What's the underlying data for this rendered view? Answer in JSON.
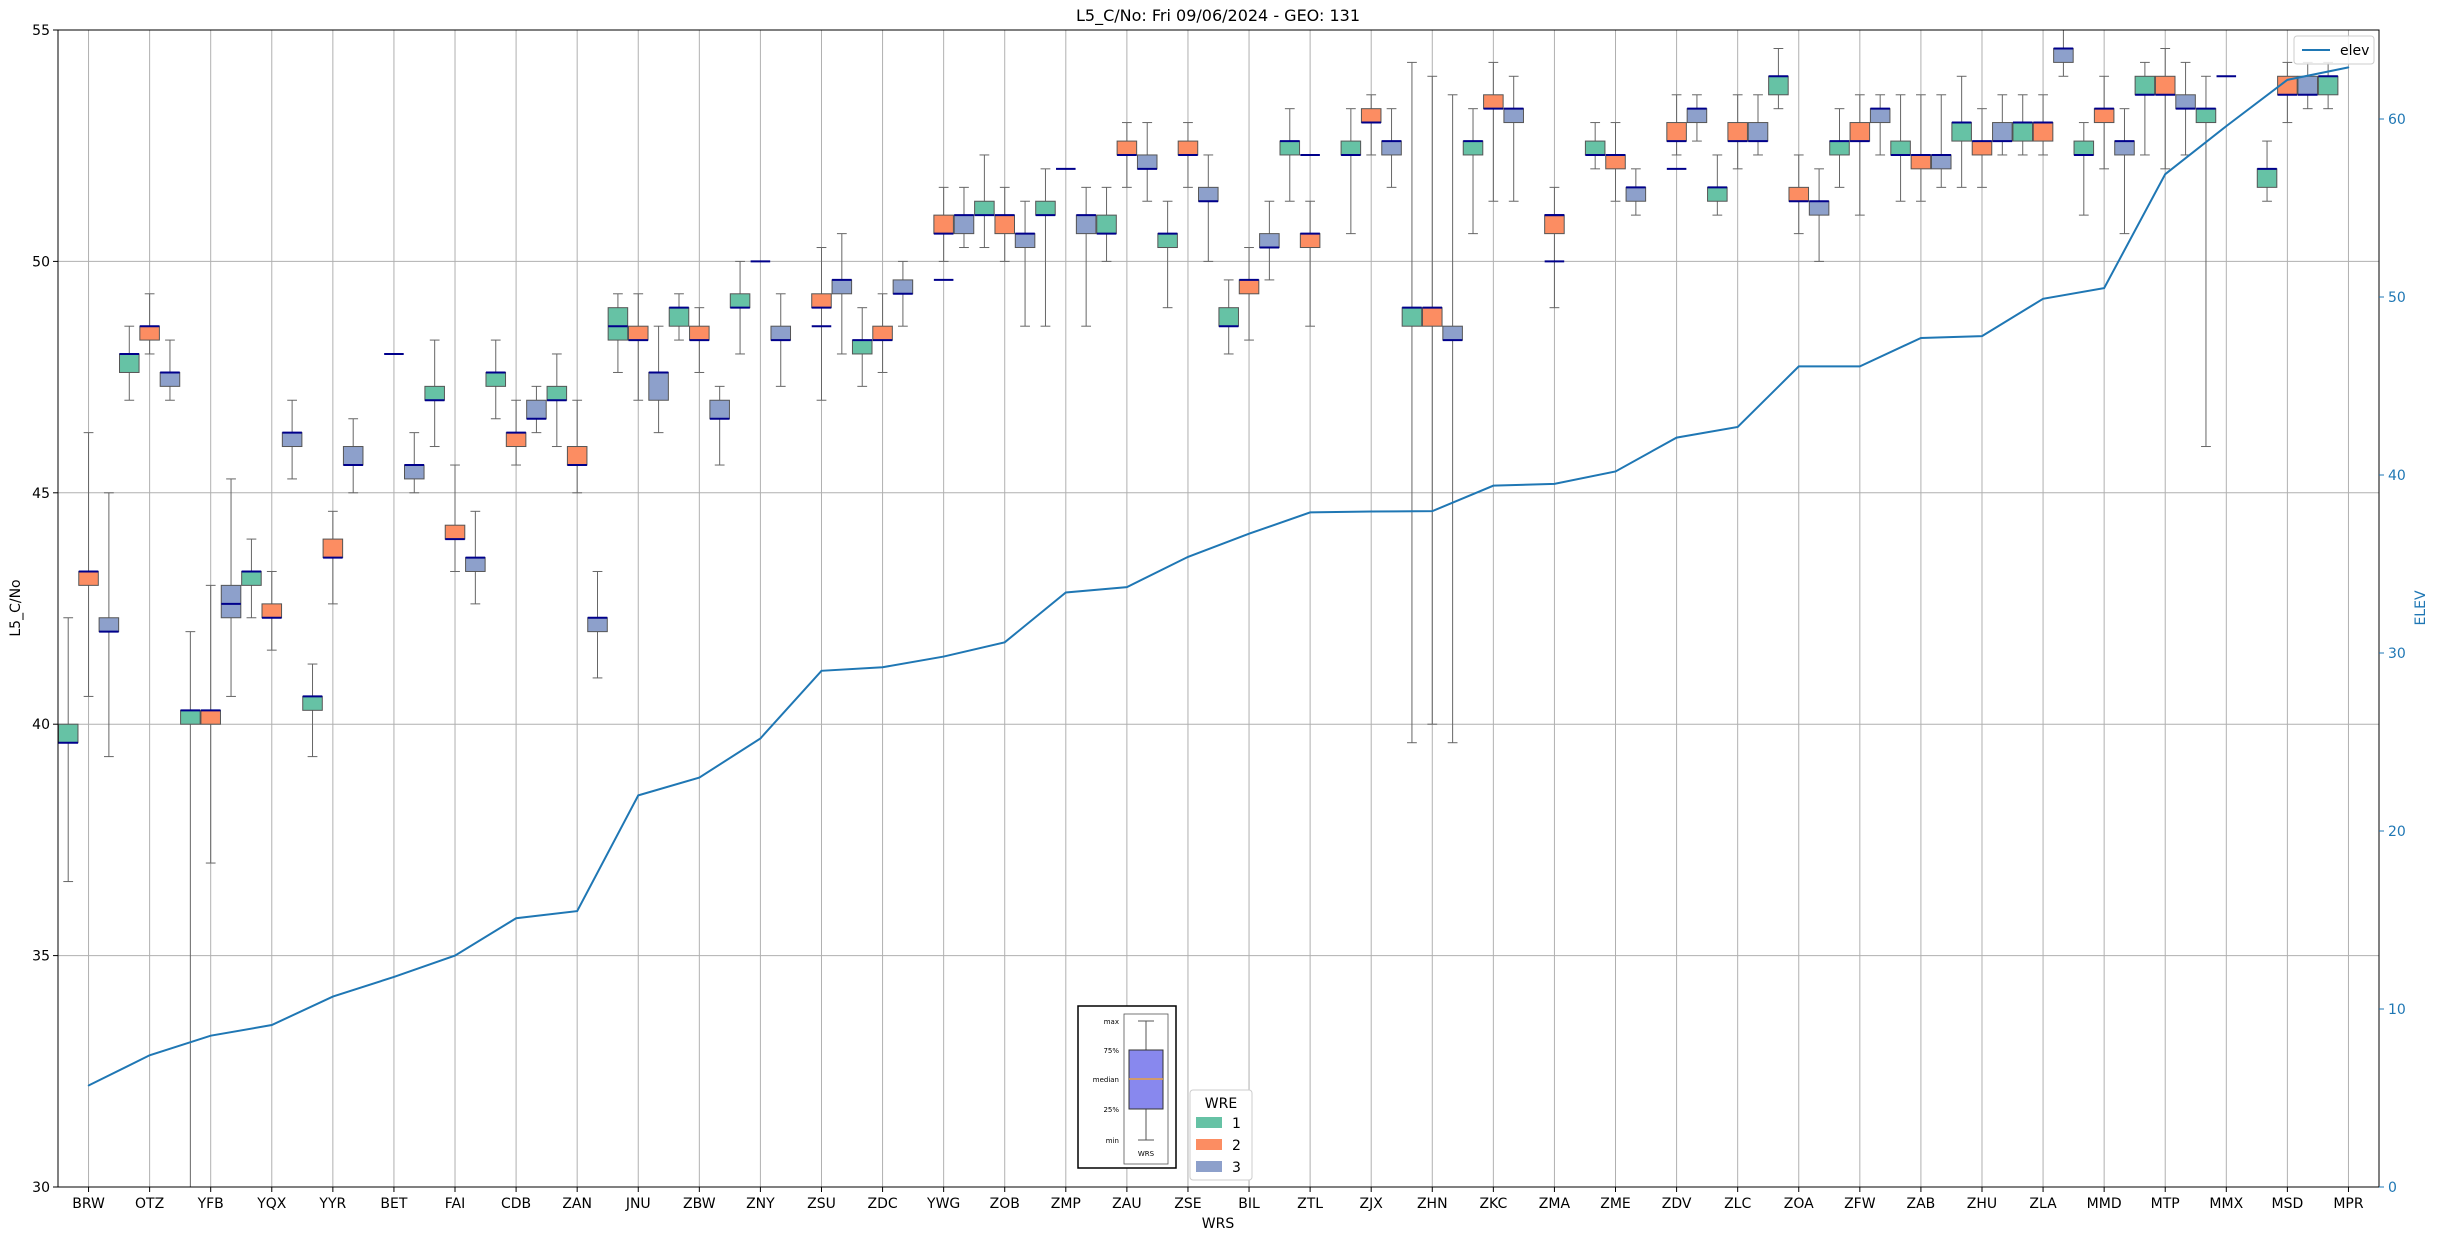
{
  "chart_data": {
    "type": "box",
    "title": "L5_C/No: Fri 09/06/2024 - GEO: 131",
    "xlabel": "WRS",
    "ylabel": "L5_C/No",
    "y2label": "ELEV",
    "ylim": [
      30,
      55
    ],
    "y2lim": [
      0,
      65
    ],
    "yticks": [
      30,
      35,
      40,
      45,
      50,
      55
    ],
    "y2ticks": [
      0,
      10,
      20,
      30,
      40,
      50,
      60
    ],
    "grid": true,
    "categories": [
      "BRW",
      "OTZ",
      "YFB",
      "YQX",
      "YYR",
      "BET",
      "FAI",
      "CDB",
      "ZAN",
      "JNU",
      "ZBW",
      "ZNY",
      "ZSU",
      "ZDC",
      "YWG",
      "ZOB",
      "ZMP",
      "ZAU",
      "ZSE",
      "BIL",
      "ZTL",
      "ZJX",
      "ZHN",
      "ZKC",
      "ZMA",
      "ZME",
      "ZDV",
      "ZLC",
      "ZOA",
      "ZFW",
      "ZAB",
      "ZHU",
      "ZLA",
      "MMD",
      "MTP",
      "MMX",
      "MSD",
      "MPR"
    ],
    "series": [
      {
        "name": "1",
        "color": "#66c2a5",
        "boxes": [
          {
            "cat": "BRW",
            "lo": 36.6,
            "q1": 39.6,
            "med": 39.6,
            "q3": 40.0,
            "hi": 42.3
          },
          {
            "cat": "OTZ",
            "lo": 47.0,
            "q1": 47.6,
            "med": 48.0,
            "q3": 48.0,
            "hi": 48.6
          },
          {
            "cat": "YFB",
            "lo": 30.0,
            "q1": 40.0,
            "med": 40.3,
            "q3": 40.3,
            "hi": 42.0
          },
          {
            "cat": "YQX",
            "lo": 42.3,
            "q1": 43.0,
            "med": 43.3,
            "q3": 43.3,
            "hi": 44.0
          },
          {
            "cat": "YYR",
            "lo": 39.3,
            "q1": 40.3,
            "med": 40.6,
            "q3": 40.6,
            "hi": 41.3
          },
          {
            "cat": "FAI",
            "lo": 46.0,
            "q1": 47.0,
            "med": 47.0,
            "q3": 47.3,
            "hi": 48.3
          },
          {
            "cat": "CDB",
            "lo": 46.6,
            "q1": 47.3,
            "med": 47.6,
            "q3": 47.6,
            "hi": 48.3
          },
          {
            "cat": "ZAN",
            "lo": 46.0,
            "q1": 47.0,
            "med": 47.0,
            "q3": 47.3,
            "hi": 48.0
          },
          {
            "cat": "JNU",
            "lo": 47.6,
            "q1": 48.3,
            "med": 48.6,
            "q3": 49.0,
            "hi": 49.3
          },
          {
            "cat": "ZBW",
            "lo": 48.3,
            "q1": 48.6,
            "med": 49.0,
            "q3": 49.0,
            "hi": 49.3
          },
          {
            "cat": "ZNY",
            "lo": 48.0,
            "q1": 49.0,
            "med": 49.0,
            "q3": 49.3,
            "hi": 50.0
          },
          {
            "cat": "ZDC",
            "lo": 47.3,
            "q1": 48.0,
            "med": 48.3,
            "q3": 48.3,
            "hi": 49.0
          },
          {
            "cat": "ZOB",
            "lo": 50.3,
            "q1": 51.0,
            "med": 51.0,
            "q3": 51.3,
            "hi": 52.3
          },
          {
            "cat": "ZMP",
            "lo": 48.6,
            "q1": 51.0,
            "med": 51.0,
            "q3": 51.3,
            "hi": 52.0
          },
          {
            "cat": "ZAU",
            "lo": 50.0,
            "q1": 50.6,
            "med": 50.6,
            "q3": 51.0,
            "hi": 51.6
          },
          {
            "cat": "ZSE",
            "lo": 49.0,
            "q1": 50.3,
            "med": 50.6,
            "q3": 50.6,
            "hi": 51.3
          },
          {
            "cat": "BIL",
            "lo": 48.0,
            "q1": 48.6,
            "med": 48.6,
            "q3": 49.0,
            "hi": 49.6
          },
          {
            "cat": "ZTL",
            "lo": 51.3,
            "q1": 52.3,
            "med": 52.6,
            "q3": 52.6,
            "hi": 53.3
          },
          {
            "cat": "ZJX",
            "lo": 50.6,
            "q1": 52.3,
            "med": 52.3,
            "q3": 52.6,
            "hi": 53.3
          },
          {
            "cat": "ZHN",
            "lo": 39.6,
            "q1": 48.6,
            "med": 49.0,
            "q3": 49.0,
            "hi": 54.3
          },
          {
            "cat": "ZKC",
            "lo": 50.6,
            "q1": 52.3,
            "med": 52.6,
            "q3": 52.6,
            "hi": 53.3
          },
          {
            "cat": "ZME",
            "lo": 52.0,
            "q1": 52.3,
            "med": 52.3,
            "q3": 52.6,
            "hi": 53.0
          },
          {
            "cat": "ZLC",
            "lo": 51.0,
            "q1": 51.3,
            "med": 51.6,
            "q3": 51.6,
            "hi": 52.3
          },
          {
            "cat": "ZOA",
            "lo": 53.3,
            "q1": 53.6,
            "med": 54.0,
            "q3": 54.0,
            "hi": 54.6
          },
          {
            "cat": "ZFW",
            "lo": 51.6,
            "q1": 52.3,
            "med": 52.6,
            "q3": 52.6,
            "hi": 53.3
          },
          {
            "cat": "ZAB",
            "lo": 51.3,
            "q1": 52.3,
            "med": 52.3,
            "q3": 52.6,
            "hi": 53.6
          },
          {
            "cat": "ZHU",
            "lo": 51.6,
            "q1": 52.6,
            "med": 53.0,
            "q3": 53.0,
            "hi": 54.0
          },
          {
            "cat": "ZLA",
            "lo": 52.3,
            "q1": 52.6,
            "med": 53.0,
            "q3": 53.0,
            "hi": 53.6
          },
          {
            "cat": "MMD",
            "lo": 51.0,
            "q1": 52.3,
            "med": 52.3,
            "q3": 52.6,
            "hi": 53.0
          },
          {
            "cat": "MTP",
            "lo": 52.3,
            "q1": 53.6,
            "med": 53.6,
            "q3": 54.0,
            "hi": 54.3
          },
          {
            "cat": "MMX",
            "lo": 46.0,
            "q1": 53.0,
            "med": 53.3,
            "q3": 53.3,
            "hi": 54.0
          },
          {
            "cat": "MSD",
            "lo": 51.3,
            "q1": 51.6,
            "med": 52.0,
            "q3": 52.0,
            "hi": 52.6
          },
          {
            "cat": "MPR",
            "lo": 53.3,
            "q1": 53.6,
            "med": 54.0,
            "q3": 54.0,
            "hi": 54.3
          }
        ]
      },
      {
        "name": "2",
        "color": "#fc8d62",
        "boxes": [
          {
            "cat": "BRW",
            "lo": 40.6,
            "q1": 43.0,
            "med": 43.3,
            "q3": 43.3,
            "hi": 46.3
          },
          {
            "cat": "OTZ",
            "lo": 48.0,
            "q1": 48.3,
            "med": 48.6,
            "q3": 48.6,
            "hi": 49.3
          },
          {
            "cat": "YFB",
            "lo": 37.0,
            "q1": 40.0,
            "med": 40.3,
            "q3": 40.3,
            "hi": 43.0
          },
          {
            "cat": "YQX",
            "lo": 41.6,
            "q1": 42.3,
            "med": 42.3,
            "q3": 42.6,
            "hi": 43.3
          },
          {
            "cat": "YYR",
            "lo": 42.6,
            "q1": 43.6,
            "med": 43.6,
            "q3": 44.0,
            "hi": 44.6
          },
          {
            "cat": "FAI",
            "lo": 43.3,
            "q1": 44.0,
            "med": 44.0,
            "q3": 44.3,
            "hi": 45.6
          },
          {
            "cat": "CDB",
            "lo": 45.6,
            "q1": 46.0,
            "med": 46.3,
            "q3": 46.3,
            "hi": 47.0
          },
          {
            "cat": "ZAN",
            "lo": 45.0,
            "q1": 45.6,
            "med": 45.6,
            "q3": 46.0,
            "hi": 47.0
          },
          {
            "cat": "JNU",
            "lo": 47.0,
            "q1": 48.3,
            "med": 48.3,
            "q3": 48.6,
            "hi": 49.3
          },
          {
            "cat": "ZBW",
            "lo": 47.6,
            "q1": 48.3,
            "med": 48.3,
            "q3": 48.6,
            "hi": 49.0
          },
          {
            "cat": "ZSU",
            "lo": 47.0,
            "q1": 49.0,
            "med": 49.0,
            "q3": 49.3,
            "hi": 50.3
          },
          {
            "cat": "ZDC",
            "lo": 47.6,
            "q1": 48.3,
            "med": 48.3,
            "q3": 48.6,
            "hi": 49.3
          },
          {
            "cat": "YWG",
            "lo": 50.0,
            "q1": 50.6,
            "med": 50.6,
            "q3": 51.0,
            "hi": 51.6
          },
          {
            "cat": "ZOB",
            "lo": 50.0,
            "q1": 50.6,
            "med": 51.0,
            "q3": 51.0,
            "hi": 51.6
          },
          {
            "cat": "ZAU",
            "lo": 51.6,
            "q1": 52.3,
            "med": 52.3,
            "q3": 52.6,
            "hi": 53.0
          },
          {
            "cat": "ZSE",
            "lo": 51.6,
            "q1": 52.3,
            "med": 52.3,
            "q3": 52.6,
            "hi": 53.0
          },
          {
            "cat": "BIL",
            "lo": 48.3,
            "q1": 49.3,
            "med": 49.6,
            "q3": 49.6,
            "hi": 50.3
          },
          {
            "cat": "ZTL",
            "lo": 48.6,
            "q1": 50.3,
            "med": 50.6,
            "q3": 50.6,
            "hi": 51.3
          },
          {
            "cat": "ZJX",
            "lo": 52.3,
            "q1": 53.0,
            "med": 53.0,
            "q3": 53.3,
            "hi": 53.6
          },
          {
            "cat": "ZHN",
            "lo": 40.0,
            "q1": 48.6,
            "med": 49.0,
            "q3": 49.0,
            "hi": 54.0
          },
          {
            "cat": "ZKC",
            "lo": 51.3,
            "q1": 53.3,
            "med": 53.3,
            "q3": 53.6,
            "hi": 54.3
          },
          {
            "cat": "ZMA",
            "lo": 49.0,
            "q1": 50.6,
            "med": 51.0,
            "q3": 51.0,
            "hi": 51.6
          },
          {
            "cat": "ZME",
            "lo": 51.3,
            "q1": 52.0,
            "med": 52.3,
            "q3": 52.3,
            "hi": 53.0
          },
          {
            "cat": "ZDV",
            "lo": 52.3,
            "q1": 52.6,
            "med": 52.6,
            "q3": 53.0,
            "hi": 53.6
          },
          {
            "cat": "ZLC",
            "lo": 52.0,
            "q1": 52.6,
            "med": 52.6,
            "q3": 53.0,
            "hi": 53.6
          },
          {
            "cat": "ZOA",
            "lo": 50.6,
            "q1": 51.3,
            "med": 51.3,
            "q3": 51.6,
            "hi": 52.3
          },
          {
            "cat": "ZFW",
            "lo": 51.0,
            "q1": 52.6,
            "med": 52.6,
            "q3": 53.0,
            "hi": 53.6
          },
          {
            "cat": "ZAB",
            "lo": 51.3,
            "q1": 52.0,
            "med": 52.3,
            "q3": 52.3,
            "hi": 53.6
          },
          {
            "cat": "ZHU",
            "lo": 51.6,
            "q1": 52.3,
            "med": 52.6,
            "q3": 52.6,
            "hi": 53.3
          },
          {
            "cat": "ZLA",
            "lo": 52.3,
            "q1": 52.6,
            "med": 53.0,
            "q3": 53.0,
            "hi": 53.6
          },
          {
            "cat": "MMD",
            "lo": 52.0,
            "q1": 53.0,
            "med": 53.3,
            "q3": 53.3,
            "hi": 54.0
          },
          {
            "cat": "MTP",
            "lo": 52.0,
            "q1": 53.6,
            "med": 53.6,
            "q3": 54.0,
            "hi": 54.6
          },
          {
            "cat": "MSD",
            "lo": 53.0,
            "q1": 53.6,
            "med": 53.6,
            "q3": 54.0,
            "hi": 54.3
          }
        ]
      },
      {
        "name": "3",
        "color": "#8da0cb",
        "boxes": [
          {
            "cat": "BRW",
            "lo": 39.3,
            "q1": 42.0,
            "med": 42.0,
            "q3": 42.3,
            "hi": 45.0
          },
          {
            "cat": "OTZ",
            "lo": 47.0,
            "q1": 47.3,
            "med": 47.6,
            "q3": 47.6,
            "hi": 48.3
          },
          {
            "cat": "YFB",
            "lo": 40.6,
            "q1": 42.3,
            "med": 42.6,
            "q3": 43.0,
            "hi": 45.3
          },
          {
            "cat": "YQX",
            "lo": 45.3,
            "q1": 46.0,
            "med": 46.3,
            "q3": 46.3,
            "hi": 47.0
          },
          {
            "cat": "YYR",
            "lo": 45.0,
            "q1": 45.6,
            "med": 45.6,
            "q3": 46.0,
            "hi": 46.6
          },
          {
            "cat": "BET",
            "lo": 45.0,
            "q1": 45.3,
            "med": 45.6,
            "q3": 45.6,
            "hi": 46.3
          },
          {
            "cat": "FAI",
            "lo": 42.6,
            "q1": 43.3,
            "med": 43.6,
            "q3": 43.6,
            "hi": 44.6
          },
          {
            "cat": "CDB",
            "lo": 46.3,
            "q1": 46.6,
            "med": 46.6,
            "q3": 47.0,
            "hi": 47.3
          },
          {
            "cat": "ZAN",
            "lo": 41.0,
            "q1": 42.0,
            "med": 42.3,
            "q3": 42.3,
            "hi": 43.3
          },
          {
            "cat": "JNU",
            "lo": 46.3,
            "q1": 47.0,
            "med": 47.6,
            "q3": 47.6,
            "hi": 48.6
          },
          {
            "cat": "ZBW",
            "lo": 45.6,
            "q1": 46.6,
            "med": 46.6,
            "q3": 47.0,
            "hi": 47.3
          },
          {
            "cat": "ZNY",
            "lo": 47.3,
            "q1": 48.3,
            "med": 48.3,
            "q3": 48.6,
            "hi": 49.3
          },
          {
            "cat": "ZSU",
            "lo": 48.0,
            "q1": 49.3,
            "med": 49.6,
            "q3": 49.6,
            "hi": 50.6
          },
          {
            "cat": "ZDC",
            "lo": 48.6,
            "q1": 49.3,
            "med": 49.3,
            "q3": 49.6,
            "hi": 50.0
          },
          {
            "cat": "YWG",
            "lo": 50.3,
            "q1": 50.6,
            "med": 51.0,
            "q3": 51.0,
            "hi": 51.6
          },
          {
            "cat": "ZOB",
            "lo": 48.6,
            "q1": 50.3,
            "med": 50.6,
            "q3": 50.6,
            "hi": 51.3
          },
          {
            "cat": "ZMP",
            "lo": 48.6,
            "q1": 50.6,
            "med": 51.0,
            "q3": 51.0,
            "hi": 51.6
          },
          {
            "cat": "ZAU",
            "lo": 51.3,
            "q1": 52.0,
            "med": 52.0,
            "q3": 52.3,
            "hi": 53.0
          },
          {
            "cat": "ZSE",
            "lo": 50.0,
            "q1": 51.3,
            "med": 51.3,
            "q3": 51.6,
            "hi": 52.3
          },
          {
            "cat": "BIL",
            "lo": 49.6,
            "q1": 50.3,
            "med": 50.3,
            "q3": 50.6,
            "hi": 51.3
          },
          {
            "cat": "ZJX",
            "lo": 51.6,
            "q1": 52.3,
            "med": 52.6,
            "q3": 52.6,
            "hi": 53.3
          },
          {
            "cat": "ZHN",
            "lo": 39.6,
            "q1": 48.3,
            "med": 48.3,
            "q3": 48.6,
            "hi": 53.6
          },
          {
            "cat": "ZKC",
            "lo": 51.3,
            "q1": 53.0,
            "med": 53.3,
            "q3": 53.3,
            "hi": 54.0
          },
          {
            "cat": "ZME",
            "lo": 51.0,
            "q1": 51.3,
            "med": 51.6,
            "q3": 51.6,
            "hi": 52.0
          },
          {
            "cat": "ZDV",
            "lo": 52.6,
            "q1": 53.0,
            "med": 53.3,
            "q3": 53.3,
            "hi": 53.6
          },
          {
            "cat": "ZLC",
            "lo": 52.3,
            "q1": 52.6,
            "med": 52.6,
            "q3": 53.0,
            "hi": 53.6
          },
          {
            "cat": "ZOA",
            "lo": 50.0,
            "q1": 51.0,
            "med": 51.3,
            "q3": 51.3,
            "hi": 52.0
          },
          {
            "cat": "ZFW",
            "lo": 52.3,
            "q1": 53.0,
            "med": 53.3,
            "q3": 53.3,
            "hi": 53.6
          },
          {
            "cat": "ZAB",
            "lo": 51.6,
            "q1": 52.0,
            "med": 52.3,
            "q3": 52.3,
            "hi": 53.6
          },
          {
            "cat": "ZHU",
            "lo": 52.3,
            "q1": 52.6,
            "med": 52.6,
            "q3": 53.0,
            "hi": 53.6
          },
          {
            "cat": "ZLA",
            "lo": 54.0,
            "q1": 54.3,
            "med": 54.6,
            "q3": 54.6,
            "hi": 55.0
          },
          {
            "cat": "MMD",
            "lo": 50.6,
            "q1": 52.3,
            "med": 52.6,
            "q3": 52.6,
            "hi": 53.3
          },
          {
            "cat": "MTP",
            "lo": 52.3,
            "q1": 53.3,
            "med": 53.3,
            "q3": 53.6,
            "hi": 54.3
          },
          {
            "cat": "MSD",
            "lo": 53.3,
            "q1": 53.6,
            "med": 53.6,
            "q3": 54.0,
            "hi": 54.3
          }
        ]
      }
    ],
    "flat_medians": [
      {
        "cat": "BET",
        "value": 48.0
      },
      {
        "cat": "ZNY",
        "value": 50.0
      },
      {
        "cat": "ZSU",
        "value": 48.6
      },
      {
        "cat": "YWG",
        "value": 49.6
      },
      {
        "cat": "ZMP",
        "value": 52.0
      },
      {
        "cat": "ZTL",
        "value": 52.3
      },
      {
        "cat": "ZMA",
        "value": 50.0
      },
      {
        "cat": "ZMA",
        "value": 51.0
      },
      {
        "cat": "ZDV",
        "value": 52.0
      },
      {
        "cat": "MMX",
        "value": 54.0
      }
    ],
    "elev": {
      "name": "elev",
      "color": "#1f77b4",
      "values": [
        5.7,
        7.4,
        8.5,
        9.1,
        10.7,
        11.8,
        13.0,
        15.1,
        15.5,
        22.0,
        23.0,
        25.2,
        29.0,
        29.2,
        29.8,
        30.6,
        33.4,
        33.7,
        35.4,
        36.7,
        37.9,
        37.95,
        37.97,
        39.4,
        39.5,
        40.2,
        42.1,
        42.7,
        46.1,
        46.1,
        47.7,
        47.8,
        49.9,
        50.5,
        56.9,
        59.6,
        62.2,
        62.9
      ]
    },
    "legend": {
      "elev_position": "top-right",
      "wre_position": "bottom-center",
      "wre_title": "WRE"
    },
    "key": {
      "labels": [
        "max",
        "75%",
        "median",
        "25%",
        "min"
      ],
      "caption": "WRS"
    }
  }
}
